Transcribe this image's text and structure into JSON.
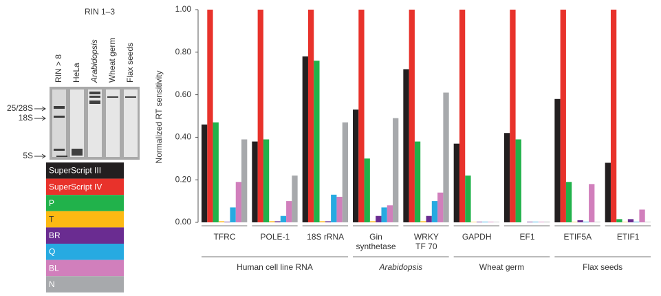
{
  "chart_data": {
    "type": "bar",
    "y_label": "Normalized RT sensitivity",
    "categories": [
      "TFRC",
      "POLE-1",
      "18S rRNA",
      "Gin\nsynthetase",
      "WRKY\nTF 70",
      "GAPDH",
      "EF1",
      "ETIF5A",
      "ETIF1"
    ],
    "groups": [
      {
        "name": "Human cell line RNA",
        "members": [
          "TFRC",
          "POLE-1",
          "18S rRNA"
        ],
        "italic": false
      },
      {
        "name": "Arabidopsis",
        "members": [
          "Gin\nsynthetase",
          "WRKY\nTF 70"
        ],
        "italic": true
      },
      {
        "name": "Wheat germ",
        "members": [
          "GAPDH",
          "EF1"
        ],
        "italic": false
      },
      {
        "name": "Flax seeds",
        "members": [
          "ETIF5A",
          "ETIF1"
        ],
        "italic": false
      }
    ],
    "series": [
      {
        "name": "SuperScript III",
        "color": "#231f20",
        "values": [
          0.46,
          0.38,
          0.78,
          0.53,
          0.72,
          0.37,
          0.42,
          0.58,
          0.28
        ]
      },
      {
        "name": "SuperScript IV",
        "color": "#e8322b",
        "values": [
          1.0,
          1.0,
          1.0,
          1.0,
          1.0,
          1.0,
          1.0,
          1.0,
          1.0
        ]
      },
      {
        "name": "P",
        "color": "#21b24b",
        "values": [
          0.47,
          0.39,
          0.76,
          0.3,
          0.38,
          0.22,
          0.39,
          0.19,
          0.015
        ]
      },
      {
        "name": "T",
        "color": "#fdb913",
        "values": [
          0.005,
          0.005,
          0.005,
          0.005,
          0.005,
          0.002,
          0.0,
          0.002,
          0.002
        ]
      },
      {
        "name": "BR",
        "color": "#6a2c91",
        "values": [
          0.003,
          0.005,
          0.005,
          0.03,
          0.03,
          0.003,
          0.003,
          0.01,
          0.015
        ]
      },
      {
        "name": "Q",
        "color": "#27aae1",
        "values": [
          0.07,
          0.03,
          0.13,
          0.07,
          0.1,
          0.003,
          0.003,
          0.003,
          0.003
        ]
      },
      {
        "name": "BL",
        "color": "#d17fbc",
        "values": [
          0.19,
          0.1,
          0.12,
          0.08,
          0.14,
          0.003,
          0.003,
          0.18,
          0.06
        ]
      },
      {
        "name": "N",
        "color": "#a7a9ac",
        "values": [
          0.39,
          0.22,
          0.47,
          0.49,
          0.61,
          0.002,
          0.003,
          0.002,
          0.002
        ]
      }
    ],
    "ylim": [
      0,
      1
    ],
    "yticks": [
      {
        "value": 0,
        "label": "0.00"
      },
      {
        "value": 0.2,
        "label": "0.20"
      },
      {
        "value": 0.4,
        "label": "0.40"
      },
      {
        "value": 0.6,
        "label": "0.60"
      },
      {
        "value": 0.8,
        "label": "0.80"
      },
      {
        "value": 1,
        "label": "1.00"
      }
    ],
    "gel": {
      "title": "RIN 1–3",
      "lanes": [
        "RIN > 8",
        "HeLa",
        "Arabidopsis",
        "Wheat germ",
        "Flax seeds"
      ],
      "markers": [
        "25/28S",
        "18S",
        "5S"
      ]
    }
  }
}
